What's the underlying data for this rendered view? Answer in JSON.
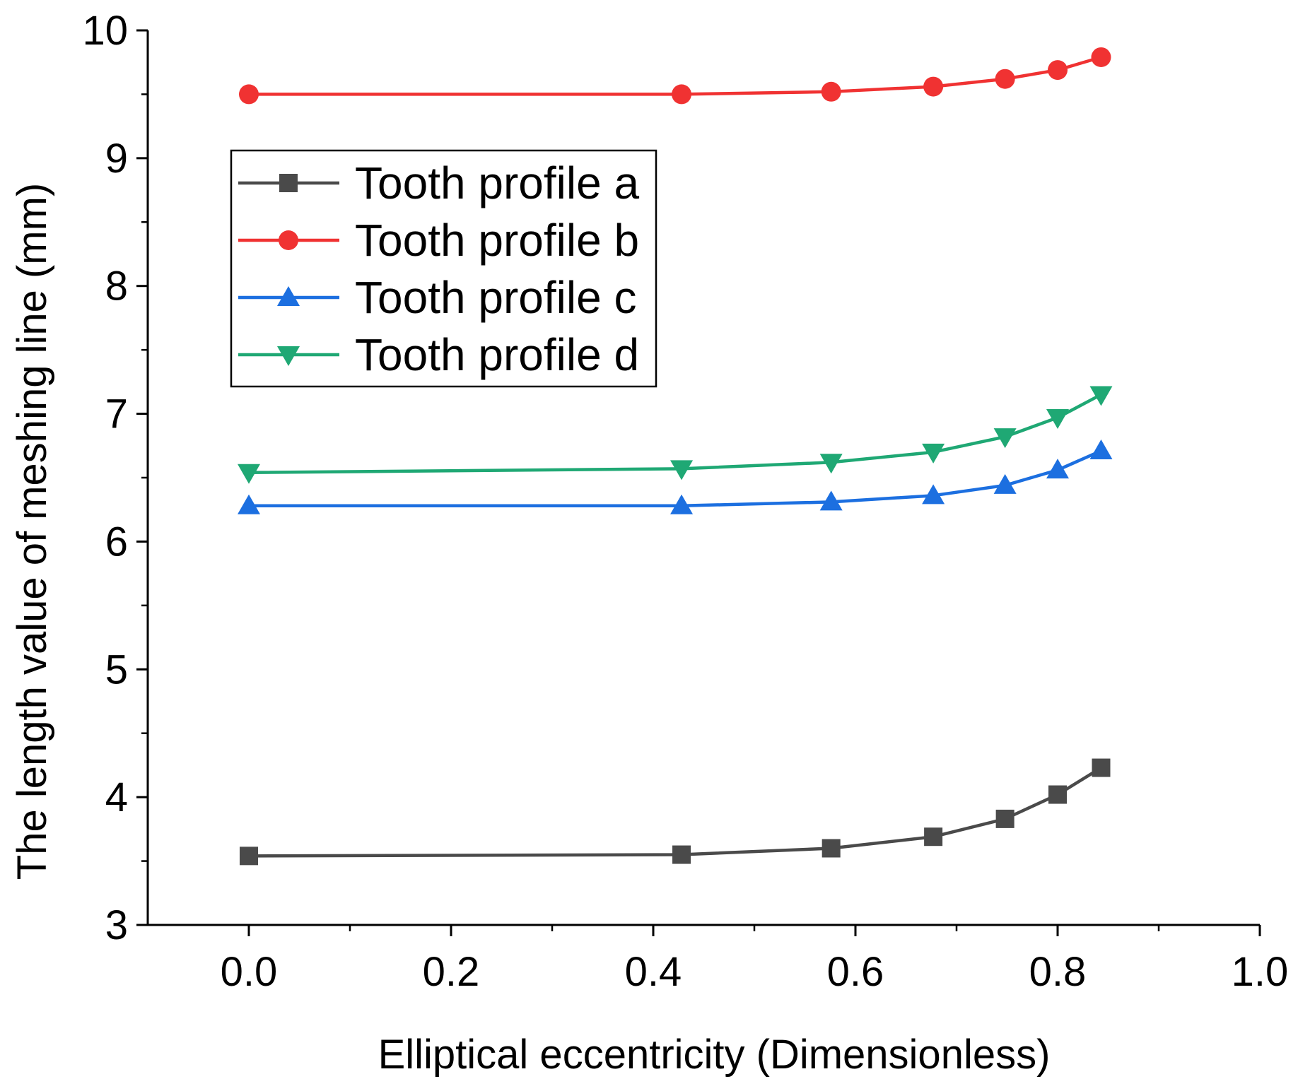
{
  "chart_data": {
    "type": "line",
    "title": "",
    "xlabel": "Elliptical eccentricity (Dimensionless)",
    "ylabel": "The length value of meshing line (mm)",
    "xlim": [
      -0.1,
      1.0
    ],
    "ylim": [
      3,
      10
    ],
    "x_ticks": [
      0.0,
      0.2,
      0.4,
      0.6,
      0.8,
      1.0
    ],
    "x_tick_labels": [
      "0.0",
      "0.2",
      "0.4",
      "0.6",
      "0.8",
      "1.0"
    ],
    "y_ticks": [
      3,
      4,
      5,
      6,
      7,
      8,
      9,
      10
    ],
    "y_tick_labels": [
      "3",
      "4",
      "5",
      "6",
      "7",
      "8",
      "9",
      "10"
    ],
    "grid": false,
    "legend_position": "upper-left",
    "x": [
      0.0,
      0.428,
      0.576,
      0.677,
      0.748,
      0.8,
      0.843
    ],
    "series": [
      {
        "name": "Tooth profile a",
        "color": "#4a4a4a",
        "marker": "square",
        "values": [
          3.54,
          3.55,
          3.6,
          3.69,
          3.83,
          4.02,
          4.23
        ]
      },
      {
        "name": "Tooth profile b",
        "color": "#f03232",
        "marker": "circle",
        "values": [
          9.5,
          9.5,
          9.52,
          9.56,
          9.62,
          9.69,
          9.79
        ]
      },
      {
        "name": "Tooth profile c",
        "color": "#1c6fe0",
        "marker": "triangle-up",
        "values": [
          6.28,
          6.28,
          6.31,
          6.36,
          6.44,
          6.56,
          6.71
        ]
      },
      {
        "name": "Tooth profile d",
        "color": "#1fa874",
        "marker": "triangle-down",
        "values": [
          6.54,
          6.57,
          6.62,
          6.7,
          6.82,
          6.97,
          7.15
        ]
      }
    ]
  }
}
